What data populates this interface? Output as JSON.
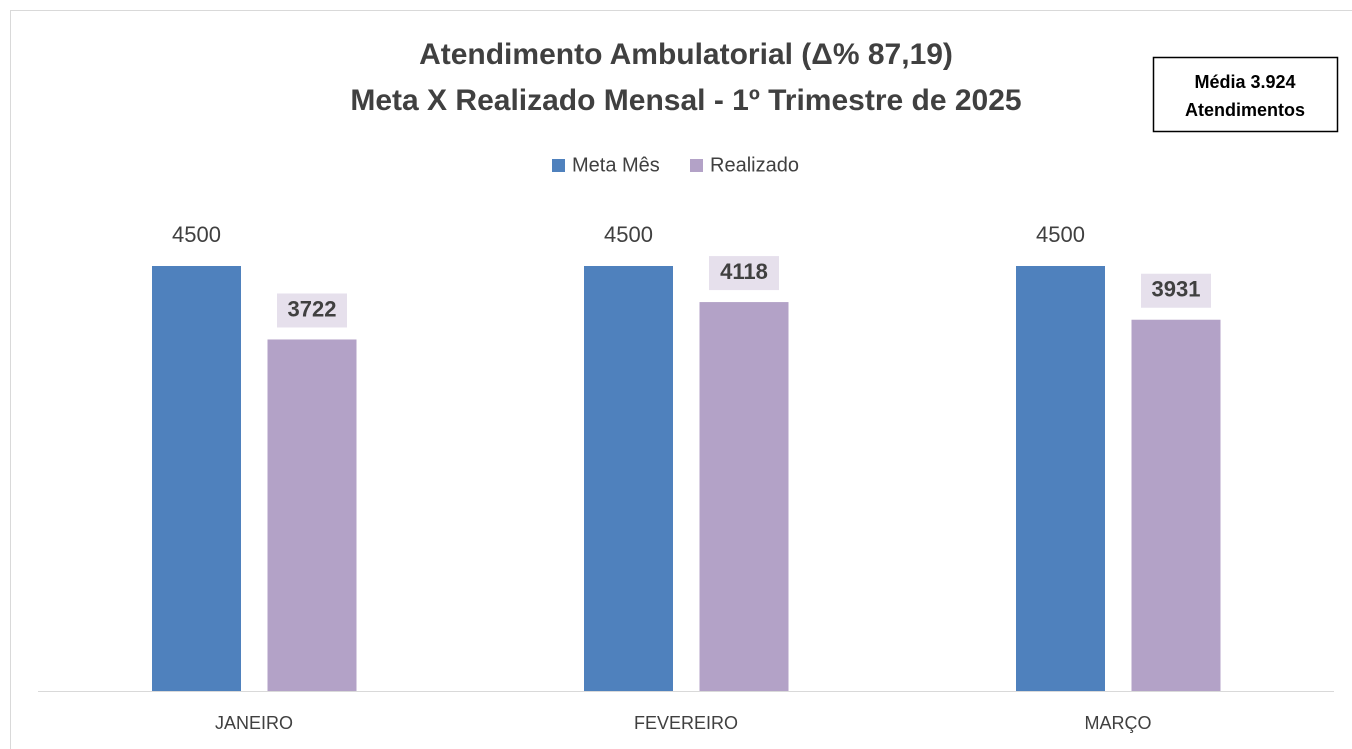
{
  "chart_data": {
    "type": "bar",
    "title": [
      "Atendimento Ambulatorial (Δ% 87,19)",
      "Meta X Realizado Mensal - 1º Trimestre de 2025"
    ],
    "annotation": [
      "Média 3.924",
      "Atendimentos"
    ],
    "categories": [
      "JANEIRO",
      "FEVEREIRO",
      "MARÇO"
    ],
    "series": [
      {
        "name": "Meta Mês",
        "color": "#4f81bd",
        "values": [
          4500,
          4500,
          4500
        ]
      },
      {
        "name": "Realizado",
        "color": "#b3a2c7",
        "values": [
          3722,
          4118,
          3931
        ]
      }
    ],
    "ylim": [
      0,
      4500
    ]
  }
}
